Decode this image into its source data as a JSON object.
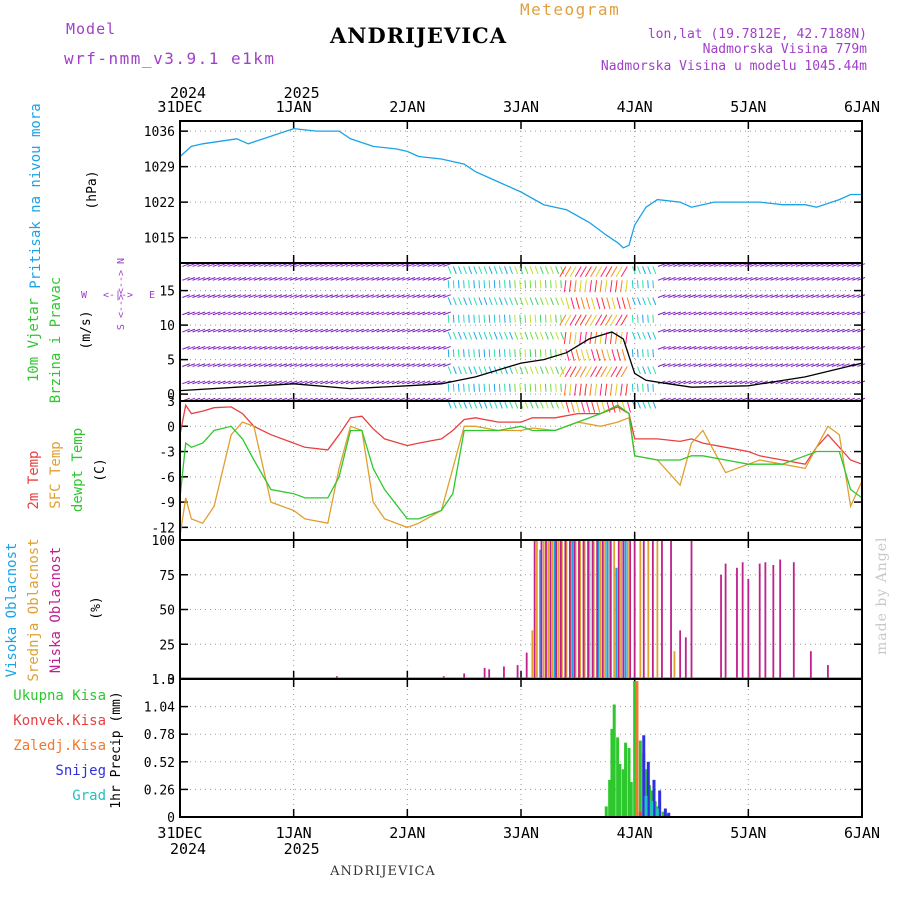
{
  "header": {
    "model_label": "Model",
    "model_name": "wrf-nmm_v3.9.1  e1km",
    "station": "ANDRIJEVICA",
    "meteogram": "Meteogram",
    "lonlat": "lon,lat (19.7812E, 42.7188N)",
    "elevation": "Nadmorska Visina 779m",
    "model_elevation": "Nadmorska Visina u modelu 1045.44m",
    "footer_station": "ANDRIJEVICA",
    "credit": "made by Angel"
  },
  "colors": {
    "pressure": "#1aa3e8",
    "t2m": "#e84040",
    "sfc": "#e0a030",
    "dewpt": "#2ec82e",
    "high_cloud": "#1aa3e8",
    "mid_cloud": "#e0a030",
    "low_cloud": "#c0208c",
    "total_precip": "#2ec82e",
    "conv_precip": "#e84040",
    "frozen_precip": "#f07830",
    "snow": "#3030e0",
    "grad": "#20c0c0",
    "purple_text": "#a040c8",
    "meteogram_text": "#e0a040"
  },
  "time_axis": {
    "top_years": [
      {
        "day": 0,
        "text": "2024"
      },
      {
        "day": 1,
        "text": "2025"
      }
    ],
    "bottom_years": [
      {
        "day": 0,
        "text": "2024"
      },
      {
        "day": 1,
        "text": "2025"
      }
    ],
    "days": [
      "31DEC",
      "1JAN",
      "2JAN",
      "3JAN",
      "4JAN",
      "5JAN",
      "6JAN"
    ]
  },
  "panels": {
    "pressure": {
      "label": "Pritisak na nivou mora",
      "unit": "(hPa)",
      "ticks": [
        "1036",
        "1029",
        "1022",
        "1015"
      ]
    },
    "wind": {
      "label1": "10m Vjetar",
      "label2": "Brzina i Pravac",
      "unit": "(m/s)",
      "ticks": [
        "15",
        "10",
        "5",
        "0"
      ],
      "compass": {
        "w": "W",
        "e": "E",
        "n": "<--> N",
        "s": "S <-->"
      }
    },
    "temp": {
      "label1": "2m Temp",
      "label2": "SFC Temp",
      "label3": "dewpt Temp",
      "unit": "(C)",
      "ticks": [
        "3",
        "0",
        "-3",
        "-6",
        "-9",
        "-12"
      ]
    },
    "cloud": {
      "label1": "Visoka Oblacnost",
      "label2": "Srednja Oblacnost",
      "label3": "Niska  Oblacnost",
      "unit": "(%)",
      "ticks": [
        "100",
        "75",
        "50",
        "25",
        "0"
      ]
    },
    "precip": {
      "unit": "1hr Precip (mm)",
      "ticks": [
        "1.3",
        "1.04",
        "0.78",
        "0.52",
        "0.26",
        "0"
      ],
      "legend": [
        "Ukupna  Kisa",
        "Konvek.Kisa",
        "Zaledj.Kisa",
        "Snijeg",
        "Grad"
      ]
    }
  },
  "chart_data": [
    {
      "type": "line",
      "title": "Pritisak na nivou mora",
      "ylabel": "(hPa)",
      "x_unit": "days since 31DEC 2024 00UTC",
      "ylim": [
        1010,
        1038
      ],
      "x": [
        0,
        0.1,
        0.2,
        0.35,
        0.5,
        0.6,
        0.8,
        1.0,
        1.2,
        1.4,
        1.5,
        1.7,
        1.9,
        2.0,
        2.1,
        2.3,
        2.5,
        2.6,
        2.8,
        3.0,
        3.2,
        3.4,
        3.6,
        3.75,
        3.85,
        3.9,
        3.95,
        4.0,
        4.1,
        4.2,
        4.4,
        4.5,
        4.7,
        4.9,
        5.1,
        5.3,
        5.5,
        5.6,
        5.8,
        5.9,
        6.0
      ],
      "values": [
        1031,
        1033,
        1033.5,
        1034,
        1034.5,
        1033.5,
        1035,
        1036.5,
        1036,
        1036,
        1034.5,
        1033,
        1032.5,
        1032,
        1031,
        1030.5,
        1029.5,
        1028,
        1026,
        1024,
        1021.5,
        1020.5,
        1018,
        1015.5,
        1014,
        1013,
        1013.5,
        1017.5,
        1021,
        1022.5,
        1022,
        1021,
        1022,
        1022,
        1022,
        1021.5,
        1021.5,
        1021,
        1022.5,
        1023.5,
        1023.5
      ]
    },
    {
      "type": "line",
      "title": "10m Vjetar Brzina i Pravac",
      "ylabel": "(m/s)",
      "x_unit": "days since 31DEC 2024 00UTC",
      "ylim": [
        -1,
        19
      ],
      "x": [
        0,
        0.5,
        1.0,
        1.5,
        2.0,
        2.3,
        2.6,
        2.9,
        3.0,
        3.2,
        3.4,
        3.6,
        3.7,
        3.8,
        3.9,
        4.0,
        4.1,
        4.3,
        4.5,
        5.0,
        5.5,
        6.0
      ],
      "values": [
        0.5,
        1.0,
        1.5,
        0.8,
        1.2,
        1.5,
        2.5,
        4.0,
        4.5,
        5.0,
        6.0,
        8.0,
        8.5,
        9.0,
        8.0,
        3.0,
        2.0,
        1.5,
        1.0,
        1.2,
        2.5,
        4.5
      ]
    },
    {
      "type": "line",
      "title": "2m Temp / SFC Temp / dewpt Temp",
      "ylabel": "(C)",
      "x_unit": "days since 31DEC 2024 00UTC",
      "ylim": [
        -13.5,
        3
      ],
      "x": [
        0,
        0.05,
        0.1,
        0.2,
        0.3,
        0.45,
        0.55,
        0.65,
        0.8,
        1.0,
        1.1,
        1.3,
        1.4,
        1.5,
        1.6,
        1.7,
        1.8,
        2.0,
        2.1,
        2.3,
        2.4,
        2.5,
        2.6,
        2.8,
        3.0,
        3.1,
        3.3,
        3.5,
        3.7,
        3.85,
        3.95,
        4.0,
        4.2,
        4.4,
        4.5,
        4.6,
        4.8,
        5.0,
        5.1,
        5.3,
        5.5,
        5.6,
        5.7,
        5.8,
        5.9,
        6.0
      ],
      "series": [
        {
          "name": "2m Temp",
          "values": [
            -1,
            2.5,
            1.5,
            1.8,
            2.2,
            2.3,
            1.5,
            0,
            -1,
            -2,
            -2.5,
            -2.8,
            -1,
            1,
            1.2,
            -0.3,
            -1.5,
            -2.3,
            -2,
            -1.5,
            -0.5,
            0.8,
            1,
            0.5,
            0.5,
            1,
            1,
            1.5,
            1.5,
            2.3,
            1.5,
            -1.5,
            -1.5,
            -1.8,
            -1.5,
            -2,
            -2.5,
            -3,
            -3.5,
            -4,
            -4.5,
            -2.5,
            -1,
            -2.5,
            -4,
            -4.5
          ]
        },
        {
          "name": "SFC Temp",
          "values": [
            -13,
            -8.5,
            -11,
            -11.5,
            -9.5,
            -1,
            0.5,
            0,
            -9,
            -10,
            -11,
            -11.5,
            -5,
            0,
            -0.5,
            -9,
            -11,
            -12,
            -11.5,
            -10,
            -5,
            0,
            0,
            -0.5,
            -0.5,
            -0.2,
            -0.5,
            0.5,
            0,
            0.5,
            1,
            -3.5,
            -4,
            -7,
            -2,
            -0.5,
            -5.5,
            -4.5,
            -4,
            -4.5,
            -5,
            -2.5,
            0,
            -1,
            -9.5,
            -6.5
          ]
        },
        {
          "name": "dewpt Temp",
          "values": [
            -8.5,
            -2,
            -2.5,
            -2,
            -0.5,
            0,
            -1.5,
            -4,
            -7.5,
            -8,
            -8.5,
            -8.5,
            -6,
            -0.5,
            -0.5,
            -5,
            -7.5,
            -11,
            -11,
            -10,
            -8,
            -0.5,
            -0.5,
            -0.5,
            0,
            -0.5,
            -0.5,
            0.5,
            1.5,
            2.5,
            1.5,
            -3.5,
            -4,
            -4,
            -3.5,
            -3.5,
            -4,
            -4.5,
            -4.5,
            -4.5,
            -3.5,
            -3,
            -3,
            -3,
            -7.5,
            -8.5
          ]
        }
      ]
    },
    {
      "type": "bar",
      "title": "Visoka / Srednja / Niska Oblacnost",
      "ylabel": "(%)",
      "x_unit": "days since 31DEC 2024 00UTC",
      "ylim": [
        0,
        100
      ],
      "series": [
        {
          "name": "Visoka Oblacnost",
          "x": [
            3.17,
            3.3,
            3.45,
            3.6,
            3.68,
            3.76,
            3.84,
            3.92
          ],
          "values": [
            93,
            100,
            100,
            100,
            100,
            100,
            80,
            100
          ]
        },
        {
          "name": "Srednja Oblacnost",
          "x": [
            3.1,
            3.14,
            3.2,
            3.24,
            3.28,
            3.33,
            3.36,
            3.4,
            3.44,
            3.48,
            3.52,
            3.56,
            3.6,
            3.64,
            3.7,
            3.74,
            3.78,
            3.82,
            3.88,
            3.94,
            4.05,
            4.12,
            4.2,
            4.35
          ],
          "values": [
            35,
            100,
            100,
            100,
            100,
            100,
            100,
            100,
            100,
            100,
            100,
            100,
            100,
            100,
            100,
            100,
            100,
            100,
            100,
            100,
            100,
            100,
            100,
            20
          ]
        },
        {
          "name": "Niska  Oblacnost",
          "x": [
            1.38,
            2.32,
            2.5,
            2.68,
            2.72,
            2.85,
            2.97,
            3.05,
            3.12,
            3.18,
            3.22,
            3.26,
            3.31,
            3.35,
            3.39,
            3.43,
            3.47,
            3.51,
            3.55,
            3.59,
            3.63,
            3.67,
            3.72,
            3.79,
            3.86,
            3.9,
            3.96,
            4.0,
            4.08,
            4.16,
            4.24,
            4.32,
            4.4,
            4.45,
            4.5,
            4.76,
            4.8,
            4.9,
            4.95,
            5.0,
            5.1,
            5.15,
            5.22,
            5.28,
            5.4,
            5.55,
            5.7
          ],
          "values": [
            2,
            2,
            4,
            8,
            7,
            9,
            10,
            19,
            100,
            100,
            100,
            100,
            100,
            100,
            100,
            100,
            100,
            100,
            100,
            100,
            100,
            100,
            100,
            100,
            100,
            100,
            100,
            100,
            100,
            100,
            100,
            100,
            35,
            30,
            100,
            75,
            83,
            80,
            84,
            72,
            83,
            84,
            82,
            86,
            84,
            20,
            10
          ]
        }
      ]
    },
    {
      "type": "bar",
      "title": "1hr Precip",
      "ylabel": "1hr Precip (mm)",
      "x_unit": "days since 31DEC 2024 00UTC",
      "ylim": [
        0,
        1.3
      ],
      "series": [
        {
          "name": "Ukupna  Kisa",
          "x": [
            3.75,
            3.78,
            3.8,
            3.82,
            3.85,
            3.87,
            3.9,
            3.92,
            3.95,
            3.97,
            4.0,
            4.02,
            4.05,
            4.08,
            4.1,
            4.13,
            4.15,
            4.18,
            4.2,
            4.25,
            4.28
          ],
          "values": [
            0.1,
            0.35,
            0.83,
            1.06,
            0.75,
            0.5,
            0.45,
            0.7,
            0.65,
            0.33,
            1.28,
            1.1,
            0.72,
            0.6,
            0.45,
            0.3,
            0.25,
            0.15,
            0.1,
            0.05,
            0.03
          ]
        },
        {
          "name": "Konvek.Kisa",
          "x": [
            4.02,
            4.05
          ],
          "values": [
            0.12,
            0.05
          ]
        },
        {
          "name": "Zaledj.Kisa",
          "x": [
            4.02
          ],
          "values": [
            1.28
          ]
        },
        {
          "name": "Snijeg",
          "x": [
            4.08,
            4.12,
            4.17,
            4.22,
            4.27,
            4.3
          ],
          "values": [
            0.77,
            0.52,
            0.35,
            0.25,
            0.08,
            0.04
          ]
        },
        {
          "name": "Grad",
          "x": [
            4.1,
            4.15,
            4.2
          ],
          "values": [
            0.2,
            0.15,
            0.08
          ]
        }
      ]
    }
  ]
}
